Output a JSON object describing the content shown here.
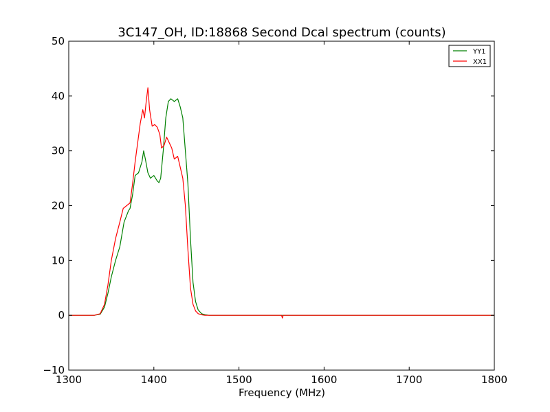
{
  "chart_data": {
    "type": "line",
    "title": "3C147_OH, ID:18868 Second Dcal spectrum (counts)",
    "xlabel": "Frequency (MHz)",
    "ylabel": "",
    "xlim": [
      1300,
      1800
    ],
    "ylim": [
      -10,
      50
    ],
    "xticks": [
      1300,
      1400,
      1500,
      1600,
      1700,
      1800
    ],
    "yticks": [
      -10,
      0,
      10,
      20,
      30,
      40,
      50
    ],
    "x_tick_labels": [
      "1300",
      "1400",
      "1500",
      "1600",
      "1700",
      "1800"
    ],
    "y_tick_labels": [
      "−10",
      "0",
      "10",
      "20",
      "30",
      "40",
      "50"
    ],
    "grid": false,
    "legend_position": "top-right",
    "series": [
      {
        "name": "YY1",
        "color": "#008000",
        "x": [
          1300,
          1330,
          1337,
          1342,
          1346,
          1350,
          1355,
          1360,
          1365,
          1370,
          1372,
          1375,
          1378,
          1382,
          1386,
          1388,
          1390,
          1393,
          1396,
          1400,
          1404,
          1406,
          1408,
          1411,
          1414,
          1417,
          1420,
          1424,
          1428,
          1431,
          1434,
          1437,
          1440,
          1443,
          1446,
          1449,
          1452,
          1456,
          1460,
          1465,
          1470,
          1500,
          1550,
          1600,
          1650,
          1700,
          1800
        ],
        "y": [
          0,
          0,
          0.2,
          1.5,
          4,
          7,
          10,
          12.5,
          17,
          19,
          19.5,
          22,
          25.5,
          26,
          28,
          30,
          28.5,
          26,
          25,
          25.5,
          24.5,
          24.2,
          25,
          30,
          36,
          39,
          39.5,
          39,
          39.5,
          38,
          36,
          30,
          24,
          14,
          6,
          2.5,
          1,
          0.3,
          0.1,
          0,
          0,
          0,
          0,
          0,
          0,
          0,
          0
        ]
      },
      {
        "name": "XX1",
        "color": "#ff0000",
        "x": [
          1300,
          1330,
          1337,
          1342,
          1346,
          1350,
          1355,
          1360,
          1364,
          1368,
          1372,
          1375,
          1378,
          1381,
          1384,
          1387,
          1389,
          1391,
          1393,
          1395,
          1398,
          1401,
          1404,
          1407,
          1409,
          1412,
          1415,
          1418,
          1421,
          1424,
          1428,
          1431,
          1434,
          1437,
          1440,
          1443,
          1446,
          1449,
          1452,
          1456,
          1460,
          1465,
          1470,
          1500,
          1550,
          1551,
          1552,
          1600,
          1650,
          1700,
          1800
        ],
        "y": [
          0,
          0,
          0.3,
          2,
          5.5,
          10,
          14,
          17,
          19.5,
          20,
          20.5,
          24,
          28,
          31.5,
          35,
          37.5,
          36,
          39,
          41.5,
          37.5,
          34.5,
          34.8,
          34.3,
          33,
          30.5,
          31,
          32.5,
          31.5,
          30.5,
          28.5,
          29,
          27,
          25,
          20,
          12,
          5,
          2,
          0.8,
          0.3,
          0.1,
          0,
          0,
          0,
          0,
          0,
          -0.5,
          0,
          0,
          0,
          0,
          0
        ]
      }
    ]
  }
}
